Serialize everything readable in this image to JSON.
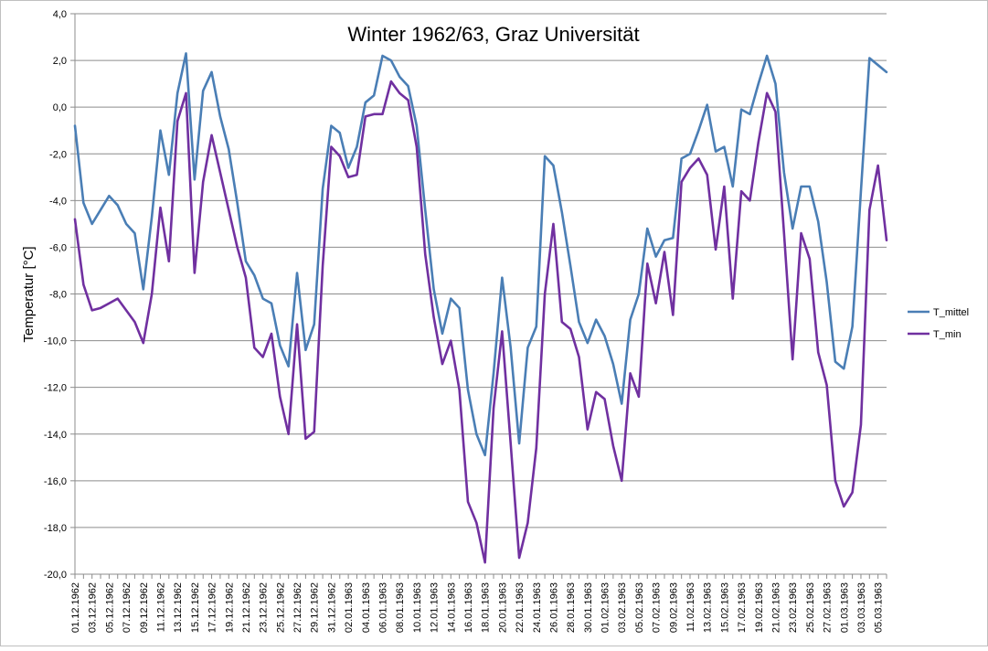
{
  "chart_data": {
    "type": "line",
    "title": "Winter 1962/63, Graz Universität",
    "ylabel": "Temperatur [°C]",
    "xlabel": "",
    "ylim": [
      -20,
      4
    ],
    "y_ticks": [
      "4,0",
      "2,0",
      "0,0",
      "-2,0",
      "-4,0",
      "-6,0",
      "-8,0",
      "-10,0",
      "-12,0",
      "-14,0",
      "-16,0",
      "-18,0",
      "-20,0"
    ],
    "grid": "horizontal",
    "legend_position": "right",
    "x_tick_labels": [
      "01.12.1962",
      "03.12.1962",
      "05.12.1962",
      "07.12.1962",
      "09.12.1962",
      "11.12.1962",
      "13.12.1962",
      "15.12.1962",
      "17.12.1962",
      "19.12.1962",
      "21.12.1962",
      "23.12.1962",
      "25.12.1962",
      "27.12.1962",
      "29.12.1962",
      "31.12.1962",
      "02.01.1963",
      "04.01.1963",
      "06.01.1963",
      "08.01.1963",
      "10.01.1963",
      "12.01.1963",
      "14.01.1963",
      "16.01.1963",
      "18.01.1963",
      "20.01.1963",
      "22.01.1963",
      "24.01.1963",
      "26.01.1963",
      "28.01.1963",
      "30.01.1963",
      "01.02.1963",
      "03.02.1963",
      "05.02.1963",
      "07.02.1963",
      "09.02.1963",
      "11.02.1963",
      "13.02.1963",
      "15.02.1963",
      "17.02.1963",
      "19.02.1963",
      "21.02.1963",
      "23.02.1963",
      "25.02.1963",
      "27.02.1963",
      "01.03.1963",
      "03.03.1963",
      "05.03.1963"
    ],
    "series": [
      {
        "name": "T_mittel",
        "color": "#4a7eb5",
        "values": [
          -0.8,
          -4.1,
          -5.0,
          -4.4,
          -3.8,
          -4.2,
          -5.0,
          -5.4,
          -7.8,
          -4.7,
          -1.0,
          -2.9,
          0.6,
          2.3,
          -3.1,
          0.7,
          1.5,
          -0.4,
          -1.8,
          -4.1,
          -6.6,
          -7.2,
          -8.2,
          -8.4,
          -10.2,
          -11.1,
          -7.1,
          -10.4,
          -9.3,
          -3.5,
          -0.8,
          -1.1,
          -2.6,
          -1.7,
          0.2,
          0.5,
          2.2,
          2.0,
          1.3,
          0.9,
          -0.8,
          -4.4,
          -7.8,
          -9.7,
          -8.2,
          -8.6,
          -12.1,
          -14.0,
          -14.9,
          -11.4,
          -7.3,
          -10.3,
          -14.4,
          -10.3,
          -9.4,
          -2.1,
          -2.5,
          -4.5,
          -6.8,
          -9.2,
          -10.1,
          -9.1,
          -9.8,
          -11.0,
          -12.7,
          -9.1,
          -8.0,
          -5.2,
          -6.4,
          -5.7,
          -5.6,
          -2.2,
          -2.0,
          -1.0,
          0.1,
          -1.9,
          -1.7,
          -3.4,
          -0.1,
          -0.3,
          1.0,
          2.2,
          1.0,
          -2.8,
          -5.2,
          -3.4,
          -3.4,
          -4.9,
          -7.5,
          -10.9,
          -11.2,
          -9.4,
          -3.6,
          2.1,
          1.8,
          1.5
        ]
      },
      {
        "name": "T_min",
        "color": "#7030a0",
        "values": [
          -4.8,
          -7.6,
          -8.7,
          -8.6,
          -8.4,
          -8.2,
          -8.7,
          -9.2,
          -10.1,
          -8.0,
          -4.3,
          -6.6,
          -0.6,
          0.6,
          -7.1,
          -3.2,
          -1.2,
          -2.8,
          -4.4,
          -6.0,
          -7.3,
          -10.3,
          -10.7,
          -9.7,
          -12.4,
          -14.0,
          -9.3,
          -14.2,
          -13.9,
          -6.8,
          -1.7,
          -2.1,
          -3.0,
          -2.9,
          -0.4,
          -0.3,
          -0.3,
          1.1,
          0.6,
          0.3,
          -1.7,
          -6.3,
          -9.0,
          -11.0,
          -10.0,
          -12.1,
          -16.9,
          -17.8,
          -19.5,
          -12.9,
          -9.6,
          -14.4,
          -19.3,
          -17.8,
          -14.6,
          -8.0,
          -5.0,
          -9.2,
          -9.5,
          -10.7,
          -13.8,
          -12.2,
          -12.5,
          -14.5,
          -16.0,
          -11.4,
          -12.4,
          -6.7,
          -8.4,
          -6.2,
          -8.9,
          -3.2,
          -2.6,
          -2.2,
          -2.9,
          -6.1,
          -3.4,
          -8.2,
          -3.6,
          -4.0,
          -1.5,
          0.6,
          -0.2,
          -5.4,
          -10.8,
          -5.4,
          -6.5,
          -10.5,
          -11.9,
          -16.0,
          -17.1,
          -16.5,
          -13.6,
          -4.4,
          -2.5,
          -5.7
        ]
      }
    ]
  }
}
